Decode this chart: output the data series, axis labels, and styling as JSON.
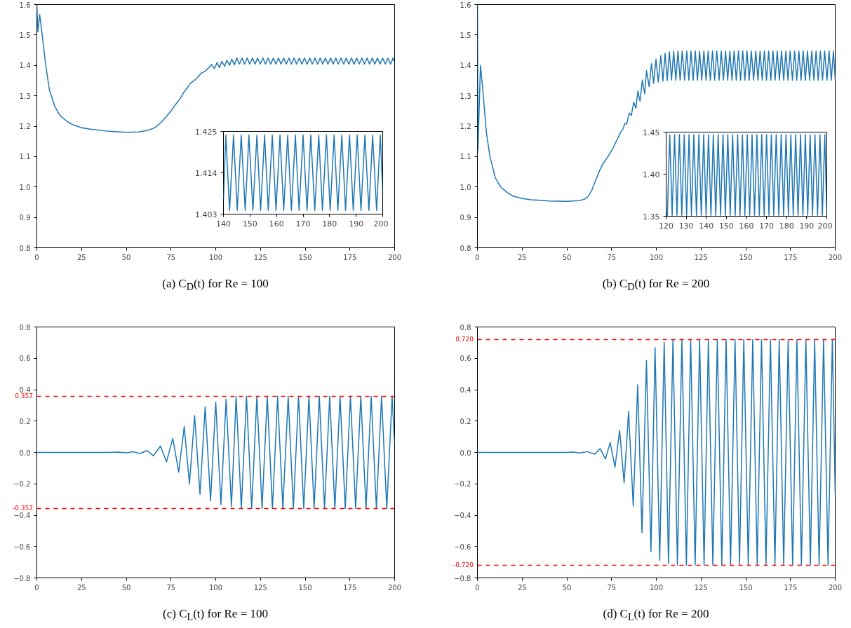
{
  "chart_data": [
    {
      "type": "line",
      "title": "(a) C$_{D}$(t) for Re = 100",
      "color": "#1f77b4",
      "xlim": [
        0,
        200
      ],
      "ylim": [
        0.8,
        1.6
      ],
      "xticks": [
        0,
        25,
        50,
        75,
        100,
        125,
        150,
        175,
        200
      ],
      "yticks": [
        0.8,
        0.9,
        {
          "value": 1.0,
          "label": "1.0"
        },
        1.1,
        1.2,
        1.3,
        1.4,
        1.5,
        1.6
      ],
      "x": [
        0,
        0.6,
        1.6,
        3,
        5,
        7,
        10,
        13,
        17,
        20,
        25,
        30,
        40,
        50,
        57,
        62,
        66,
        70,
        75,
        78,
        80,
        82,
        84,
        86,
        88,
        90,
        92,
        94,
        97.7,
        99.3,
        100.7,
        102.1,
        103.4,
        105.0,
        106.2,
        107.7,
        109.0,
        110.4,
        111.8,
        113.2,
        114.7,
        116.1,
        117.6,
        119.0,
        120.5,
        122.0,
        123.4,
        124.9,
        126.4,
        127.8,
        129.3,
        130.7,
        132.2,
        133.6,
        135.1,
        136.5,
        138.0,
        139.4,
        140.9,
        142.3,
        143.8,
        145.2,
        146.7,
        148.2,
        149.6,
        151.1,
        152.6,
        154.0,
        155.5,
        156.9,
        158.4,
        159.8,
        161.3,
        162.7,
        164.2,
        165.6,
        167.1,
        168.5,
        170.0,
        171.5,
        172.9,
        174.4,
        175.9,
        177.3,
        178.8,
        180.2,
        181.7,
        183.1,
        184.6,
        186.0,
        187.5,
        188.9,
        190.4,
        191.8,
        193.3,
        194.8,
        196.2,
        197.7,
        199.1,
        200
      ],
      "values": [
        1.6,
        1.51,
        1.567,
        1.5,
        1.4,
        1.32,
        1.265,
        1.235,
        1.215,
        1.205,
        1.195,
        1.19,
        1.183,
        1.18,
        1.181,
        1.186,
        1.195,
        1.215,
        1.25,
        1.275,
        1.29,
        1.31,
        1.325,
        1.342,
        1.35,
        1.362,
        1.375,
        1.38,
        1.402,
        1.389,
        1.409,
        1.393,
        1.413,
        1.397,
        1.417,
        1.4,
        1.42,
        1.402,
        1.424,
        1.404,
        1.424,
        1.404,
        1.424,
        1.404,
        1.424,
        1.404,
        1.424,
        1.404,
        1.424,
        1.404,
        1.424,
        1.404,
        1.424,
        1.404,
        1.424,
        1.404,
        1.424,
        1.404,
        1.424,
        1.404,
        1.424,
        1.404,
        1.424,
        1.404,
        1.424,
        1.404,
        1.424,
        1.404,
        1.424,
        1.404,
        1.424,
        1.404,
        1.424,
        1.404,
        1.424,
        1.404,
        1.424,
        1.404,
        1.424,
        1.404,
        1.424,
        1.404,
        1.424,
        1.404,
        1.424,
        1.404,
        1.424,
        1.404,
        1.424,
        1.404,
        1.424,
        1.404,
        1.424,
        1.404,
        1.424,
        1.404,
        1.424,
        1.404,
        1.424,
        1.409
      ]
    },
    {
      "type": "line",
      "color": "#1f77b4",
      "xlim": [
        140,
        200
      ],
      "ylim": [
        1.403,
        1.425
      ],
      "xticks": [
        140,
        150,
        160,
        170,
        180,
        190,
        200
      ],
      "yticks": [
        1.403,
        1.414,
        1.425
      ],
      "x": [
        140,
        140.9,
        142.3,
        143.8,
        145.2,
        146.7,
        148.2,
        149.6,
        151.1,
        152.6,
        154.0,
        155.5,
        156.9,
        158.4,
        159.8,
        161.3,
        162.7,
        164.2,
        165.6,
        167.1,
        168.5,
        170.0,
        171.5,
        172.9,
        174.4,
        175.9,
        177.3,
        178.8,
        180.2,
        181.7,
        183.1,
        184.6,
        186.0,
        187.5,
        188.9,
        190.4,
        191.8,
        193.3,
        194.8,
        196.2,
        197.7,
        199.1,
        200
      ],
      "values": [
        1.407,
        1.424,
        1.404,
        1.424,
        1.404,
        1.424,
        1.404,
        1.424,
        1.404,
        1.424,
        1.404,
        1.424,
        1.404,
        1.424,
        1.404,
        1.424,
        1.404,
        1.424,
        1.404,
        1.424,
        1.404,
        1.424,
        1.404,
        1.424,
        1.404,
        1.424,
        1.404,
        1.424,
        1.404,
        1.424,
        1.404,
        1.424,
        1.404,
        1.424,
        1.404,
        1.424,
        1.404,
        1.424,
        1.404,
        1.424,
        1.404,
        1.424,
        1.409
      ]
    },
    {
      "type": "line",
      "title": "(b) C$_{D}$(t) for Re = 200",
      "color": "#1f77b4",
      "xlim": [
        0,
        200
      ],
      "ylim": [
        0.8,
        1.6
      ],
      "xticks": [
        0,
        25,
        50,
        75,
        100,
        125,
        150,
        175,
        200
      ],
      "yticks": [
        0.8,
        0.9,
        {
          "value": 1.0,
          "label": "1.0"
        },
        1.1,
        1.2,
        1.3,
        1.4,
        1.5,
        1.6
      ],
      "x": [
        0,
        0.3,
        1.7,
        3,
        5,
        7,
        10,
        13,
        17,
        20,
        25,
        30,
        40,
        50,
        57,
        60,
        62,
        64,
        66,
        68,
        70,
        73,
        76,
        78,
        80.1,
        81.3,
        82.5,
        83.5,
        84.8,
        86.0,
        87.4,
        88.6,
        89.7,
        90.9,
        92.2,
        93.5,
        94.5,
        96.0,
        97.3,
        98.5,
        99.8,
        101.1,
        102.5,
        103.7,
        104.9,
        106.1,
        107.3,
        108.5,
        109.7,
        110.9,
        112.1,
        113.3,
        114.5,
        115.8,
        117.0,
        118.2,
        119.4,
        120.6,
        121.8,
        123.0,
        124.2,
        125.4,
        126.6,
        127.8,
        129.0,
        130.2,
        131.4,
        132.6,
        133.8,
        135.1,
        136.3,
        137.5,
        138.7,
        139.9,
        141.1,
        142.3,
        143.5,
        144.7,
        145.9,
        147.1,
        148.3,
        149.5,
        150.7,
        151.9,
        153.1,
        154.4,
        155.6,
        156.8,
        158.0,
        159.2,
        160.4,
        161.6,
        162.8,
        164.0,
        165.2,
        166.4,
        167.6,
        168.8,
        170.0,
        171.2,
        172.4,
        173.6,
        174.8,
        176.1,
        177.3,
        178.5,
        179.7,
        180.9,
        182.1,
        183.3,
        184.5,
        185.7,
        186.9,
        188.1,
        189.3,
        190.5,
        191.7,
        192.9,
        194.1,
        195.4,
        196.6,
        197.8,
        199.0,
        200
      ],
      "values": [
        1.6,
        1.12,
        1.4,
        1.32,
        1.18,
        1.1,
        1.03,
        1.0,
        0.98,
        0.97,
        0.962,
        0.958,
        0.954,
        0.953,
        0.955,
        0.96,
        0.97,
        0.99,
        1.02,
        1.05,
        1.075,
        1.1,
        1.13,
        1.155,
        1.18,
        1.19,
        1.209,
        1.207,
        1.243,
        1.235,
        1.279,
        1.259,
        1.315,
        1.282,
        1.352,
        1.306,
        1.383,
        1.33,
        1.406,
        1.341,
        1.42,
        1.345,
        1.432,
        1.348,
        1.44,
        1.35,
        1.445,
        1.352,
        1.447,
        1.351,
        1.447,
        1.351,
        1.447,
        1.351,
        1.447,
        1.351,
        1.447,
        1.351,
        1.447,
        1.351,
        1.447,
        1.351,
        1.447,
        1.351,
        1.447,
        1.351,
        1.447,
        1.351,
        1.447,
        1.351,
        1.447,
        1.351,
        1.447,
        1.351,
        1.447,
        1.351,
        1.447,
        1.351,
        1.447,
        1.351,
        1.447,
        1.351,
        1.447,
        1.351,
        1.447,
        1.351,
        1.447,
        1.351,
        1.447,
        1.351,
        1.447,
        1.351,
        1.447,
        1.351,
        1.447,
        1.351,
        1.447,
        1.351,
        1.447,
        1.351,
        1.447,
        1.351,
        1.447,
        1.351,
        1.447,
        1.351,
        1.447,
        1.351,
        1.447,
        1.351,
        1.447,
        1.351,
        1.447,
        1.351,
        1.447,
        1.351,
        1.447,
        1.351,
        1.447,
        1.351,
        1.447,
        1.351,
        1.447,
        1.352
      ]
    },
    {
      "type": "line",
      "color": "#1f77b4",
      "xlim": [
        120,
        200
      ],
      "ylim": [
        1.35,
        1.45
      ],
      "xticks": [
        120,
        130,
        140,
        150,
        160,
        170,
        180,
        190,
        200
      ],
      "yticks": [
        1.35,
        {
          "value": 1.4,
          "label": "1.40"
        },
        1.45
      ],
      "x": [
        120,
        120.6,
        121.8,
        123.0,
        124.2,
        125.4,
        126.6,
        127.8,
        129.0,
        130.2,
        131.4,
        132.6,
        133.8,
        135.1,
        136.3,
        137.5,
        138.7,
        139.9,
        141.1,
        142.3,
        143.5,
        144.7,
        145.9,
        147.1,
        148.3,
        149.5,
        150.7,
        151.9,
        153.1,
        154.4,
        155.6,
        156.8,
        158.0,
        159.2,
        160.4,
        161.6,
        162.8,
        164.0,
        165.2,
        166.4,
        167.6,
        168.8,
        170.0,
        171.2,
        172.4,
        173.6,
        174.8,
        176.1,
        177.3,
        178.5,
        179.7,
        180.9,
        182.1,
        183.3,
        184.5,
        185.7,
        186.9,
        188.1,
        189.3,
        190.5,
        191.7,
        192.9,
        194.1,
        195.4,
        196.6,
        197.8,
        199.0,
        200
      ],
      "values": [
        1.355,
        1.351,
        1.447,
        1.351,
        1.447,
        1.351,
        1.447,
        1.351,
        1.447,
        1.351,
        1.447,
        1.351,
        1.447,
        1.351,
        1.447,
        1.351,
        1.447,
        1.351,
        1.447,
        1.351,
        1.447,
        1.351,
        1.447,
        1.351,
        1.447,
        1.351,
        1.447,
        1.351,
        1.447,
        1.351,
        1.447,
        1.351,
        1.447,
        1.351,
        1.447,
        1.351,
        1.447,
        1.351,
        1.447,
        1.351,
        1.447,
        1.351,
        1.447,
        1.351,
        1.447,
        1.351,
        1.447,
        1.351,
        1.447,
        1.351,
        1.447,
        1.351,
        1.447,
        1.351,
        1.447,
        1.351,
        1.447,
        1.351,
        1.447,
        1.351,
        1.447,
        1.351,
        1.447,
        1.351,
        1.447,
        1.351,
        1.447,
        1.352
      ]
    },
    {
      "type": "line",
      "title": "(c) C$_{L}$(t) for Re = 100",
      "color": "#1f77b4",
      "xlim": [
        0,
        200
      ],
      "ylim": [
        -0.8,
        0.8
      ],
      "xticks": [
        0,
        25,
        50,
        75,
        100,
        125,
        150,
        175,
        200
      ],
      "yticks": [
        {
          "value": -0.8,
          "label": "−0.8"
        },
        {
          "value": -0.6,
          "label": "−0.6"
        },
        {
          "value": -0.4,
          "label": "−0.4"
        },
        {
          "value": -0.2,
          "label": "−0.2"
        },
        {
          "value": 0,
          "label": "0.0"
        },
        0.2,
        0.4,
        0.6,
        0.8
      ],
      "ref_lines": [
        {
          "axis": "y",
          "value": 0.357,
          "label": "0.357",
          "color": "#ff0000",
          "line_style": "dashed"
        },
        {
          "axis": "y",
          "value": -0.357,
          "label": "-0.357",
          "color": "#ff0000",
          "line_style": "dashed"
        }
      ],
      "x": [
        0,
        40,
        46,
        49.9,
        54,
        57.7,
        61.7,
        65.2,
        69.1,
        72.5,
        76,
        79.3,
        82.4,
        85.3,
        88.2,
        91.2,
        94.1,
        97.1,
        100,
        102.9,
        105.8,
        108.8,
        111.4,
        114.3,
        117.2,
        120.1,
        123.0,
        125.9,
        128.8,
        131.7,
        134.6,
        137.5,
        140.5,
        143.4,
        146.3,
        149.2,
        152.1,
        155.0,
        157.9,
        160.8,
        163.7,
        166.6,
        169.5,
        172.4,
        175.3,
        178.2,
        181.1,
        184.0,
        186.9,
        189.8,
        192.7,
        195.6,
        198.6,
        200
      ],
      "values": [
        0,
        0,
        0.002,
        -0.002,
        0.004,
        -0.007,
        0.012,
        -0.022,
        0.04,
        -0.06,
        0.09,
        -0.126,
        0.165,
        -0.202,
        0.235,
        -0.267,
        0.29,
        -0.308,
        0.32,
        -0.333,
        0.34,
        -0.344,
        0.357,
        -0.357,
        0.357,
        -0.357,
        0.357,
        -0.357,
        0.357,
        -0.357,
        0.357,
        -0.357,
        0.357,
        -0.357,
        0.357,
        -0.357,
        0.357,
        -0.357,
        0.357,
        -0.357,
        0.357,
        -0.357,
        0.357,
        -0.357,
        0.357,
        -0.357,
        0.357,
        -0.357,
        0.357,
        -0.357,
        0.357,
        -0.357,
        0.357,
        0.05
      ]
    },
    {
      "type": "line",
      "title": "(d) C$_{L}$(t) for Re = 200",
      "color": "#1f77b4",
      "xlim": [
        0,
        200
      ],
      "ylim": [
        -0.8,
        0.8
      ],
      "xticks": [
        0,
        25,
        50,
        75,
        100,
        125,
        150,
        175,
        200
      ],
      "yticks": [
        {
          "value": -0.8,
          "label": "−0.8"
        },
        {
          "value": -0.6,
          "label": "−0.6"
        },
        {
          "value": -0.4,
          "label": "−0.4"
        },
        {
          "value": -0.2,
          "label": "−0.2"
        },
        {
          "value": 0,
          "label": "0.0"
        },
        0.2,
        0.4,
        0.6,
        0.8
      ],
      "ref_lines": [
        {
          "axis": "y",
          "value": 0.72,
          "label": "0.720",
          "color": "#ff0000",
          "line_style": "dashed"
        },
        {
          "axis": "y",
          "value": -0.72,
          "label": "-0.720",
          "color": "#ff0000",
          "line_style": "dashed"
        }
      ],
      "x": [
        0,
        50,
        53,
        57.1,
        61.4,
        65.5,
        68.6,
        71.6,
        74.2,
        76.9,
        79.5,
        82.0,
        84.5,
        87.1,
        89.6,
        92.0,
        94.5,
        97.0,
        99.3,
        101.9,
        104.4,
        106.8,
        109.3,
        111.8,
        114.3,
        116.8,
        119.2,
        121.7,
        124.2,
        126.7,
        129.1,
        131.6,
        134.1,
        136.6,
        139.0,
        141.5,
        144.0,
        146.5,
        148.9,
        151.4,
        153.9,
        156.4,
        158.8,
        161.3,
        163.8,
        166.3,
        168.7,
        171.2,
        173.7,
        176.2,
        178.6,
        181.1,
        183.6,
        186.1,
        188.5,
        191.0,
        193.5,
        196.0,
        198.4,
        200
      ],
      "values": [
        0,
        0,
        0.002,
        -0.003,
        0.005,
        -0.011,
        0.024,
        -0.042,
        0.063,
        -0.094,
        0.14,
        -0.194,
        0.262,
        -0.342,
        0.431,
        -0.513,
        0.585,
        -0.634,
        0.668,
        -0.688,
        0.703,
        -0.709,
        0.72,
        -0.72,
        0.72,
        -0.72,
        0.72,
        -0.72,
        0.72,
        -0.72,
        0.72,
        -0.72,
        0.72,
        -0.72,
        0.72,
        -0.72,
        0.72,
        -0.72,
        0.72,
        -0.72,
        0.72,
        -0.72,
        0.72,
        -0.72,
        0.72,
        -0.72,
        0.72,
        -0.72,
        0.72,
        -0.72,
        0.72,
        -0.72,
        0.72,
        -0.72,
        0.72,
        -0.72,
        0.72,
        -0.72,
        0.72,
        -0.27
      ]
    }
  ]
}
